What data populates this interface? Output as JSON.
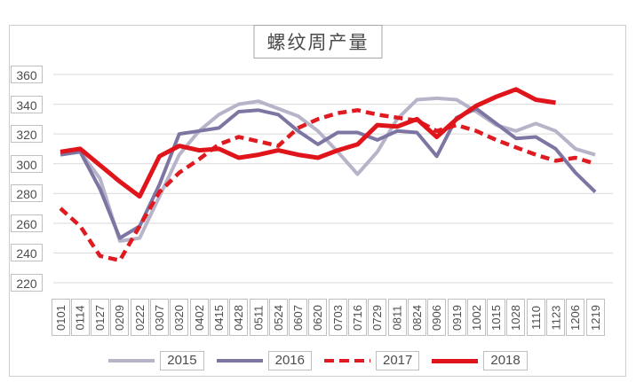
{
  "chart_data": {
    "type": "line",
    "title": "螺纹周产量",
    "xlabel": "",
    "ylabel": "",
    "ylim": [
      220,
      360
    ],
    "y_tick_step": 20,
    "y_ticks": [
      360,
      340,
      320,
      300,
      280,
      260,
      240,
      220
    ],
    "grid": "horizontal",
    "legend_position": "bottom",
    "categories": [
      "0101",
      "0114",
      "0127",
      "0209",
      "0222",
      "0307",
      "0320",
      "0402",
      "0415",
      "0428",
      "0511",
      "0524",
      "0607",
      "0620",
      "0703",
      "0716",
      "0729",
      "0811",
      "0824",
      "0906",
      "0919",
      "1002",
      "1015",
      "1028",
      "1110",
      "1123",
      "1206",
      "1219"
    ],
    "series": [
      {
        "name": "2015",
        "color": "#b7b3c9",
        "style": "solid",
        "width": 4,
        "values": [
          307,
          308,
          290,
          248,
          250,
          278,
          306,
          322,
          333,
          340,
          342,
          337,
          332,
          322,
          308,
          293,
          308,
          330,
          343,
          344,
          343,
          335,
          326,
          322,
          327,
          322,
          310,
          306
        ]
      },
      {
        "name": "2016",
        "color": "#7d76a3",
        "style": "solid",
        "width": 4,
        "values": [
          306,
          308,
          283,
          250,
          258,
          286,
          320,
          322,
          324,
          335,
          336,
          333,
          322,
          313,
          321,
          321,
          316,
          322,
          321,
          305,
          331,
          337,
          327,
          317,
          318,
          310,
          294,
          281
        ]
      },
      {
        "name": "2017",
        "color": "#df1a20",
        "style": "dashed",
        "width": 4.5,
        "values": [
          270,
          258,
          238,
          235,
          258,
          281,
          294,
          303,
          313,
          318,
          315,
          312,
          324,
          330,
          334,
          336,
          333,
          331,
          329,
          322,
          326,
          322,
          316,
          311,
          306,
          302,
          304,
          300
        ]
      },
      {
        "name": "2018",
        "color": "#e0151c",
        "style": "solid",
        "width": 5,
        "values": [
          308,
          310,
          299,
          288,
          278,
          305,
          312,
          309,
          310,
          304,
          306,
          309,
          306,
          304,
          309,
          313,
          326,
          325,
          330,
          318,
          330,
          339,
          345,
          350,
          343,
          341
        ]
      }
    ]
  }
}
